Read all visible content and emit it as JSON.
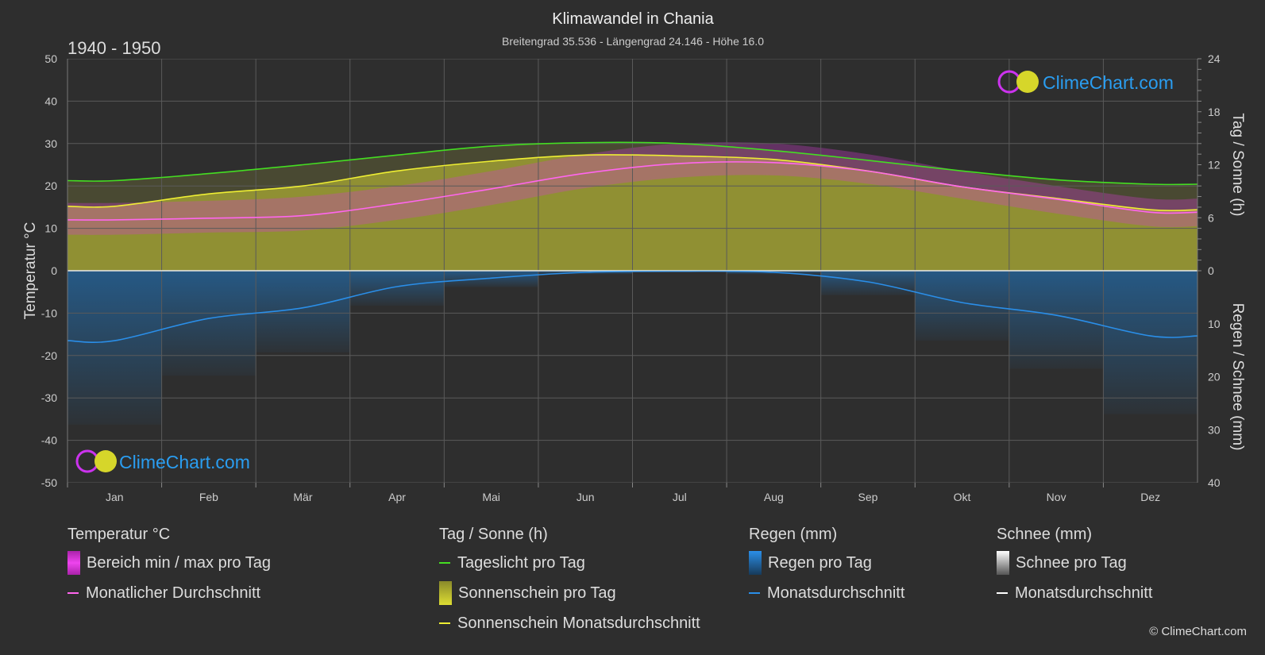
{
  "header": {
    "title": "Klimawandel in Chania",
    "subtitle": "Breitengrad 35.536 - Längengrad 24.146 - Höhe 16.0",
    "period": "1940 - 1950"
  },
  "logo_text": "ClimeChart.com",
  "copyright": "© ClimeChart.com",
  "colors": {
    "background": "#2e2e2e",
    "daylight": "#44dd22",
    "sunshine_fill": "#9c9c34",
    "sunshine_line": "#eeee33",
    "temp_range": "#d43ad4",
    "temp_avg": "#ff66ee",
    "rain": "#1f7ccc",
    "rain_avg": "#2a8ee8",
    "snow_avg": "#ffffff",
    "logo": "#2a9df0"
  },
  "chart_data": {
    "type": "area",
    "x": [
      "Jan",
      "Feb",
      "Mär",
      "Apr",
      "Mai",
      "Jun",
      "Jul",
      "Aug",
      "Sep",
      "Okt",
      "Nov",
      "Dez"
    ],
    "y_left": {
      "label": "Temperatur °C",
      "range": [
        -50,
        50
      ],
      "ticks": [
        "50",
        "40",
        "30",
        "20",
        "10",
        "0",
        "-10",
        "-20",
        "-30",
        "-40",
        "-50"
      ]
    },
    "y_right_top": {
      "label": "Tag / Sonne (h)",
      "range": [
        0,
        24
      ],
      "ticks": [
        "24",
        "18",
        "12",
        "6",
        "0"
      ]
    },
    "y_right_bottom": {
      "label": "Regen / Schnee (mm)",
      "range": [
        0,
        40
      ],
      "ticks": [
        "10",
        "20",
        "30",
        "40"
      ]
    },
    "grid": true,
    "series": [
      {
        "name": "Tageslicht pro Tag",
        "unit": "h",
        "values": [
          10.2,
          11.0,
          12.0,
          13.1,
          14.1,
          14.5,
          14.4,
          13.6,
          12.5,
          11.3,
          10.3,
          9.8
        ]
      },
      {
        "name": "Sonnenschein Monatsdurchschnitt",
        "unit": "h",
        "values": [
          7.3,
          8.7,
          9.6,
          11.3,
          12.4,
          13.1,
          13.0,
          12.6,
          11.3,
          9.5,
          8.2,
          6.9
        ]
      },
      {
        "name": "Monatlicher Durchschnitt",
        "unit": "°C",
        "values": [
          12.0,
          12.4,
          13.0,
          15.8,
          19.3,
          23.0,
          25.3,
          25.5,
          23.5,
          19.8,
          16.9,
          13.8
        ]
      },
      {
        "name": "Bereich min / max pro Tag",
        "unit": "°C",
        "min": [
          8.5,
          9.0,
          9.5,
          12.0,
          15.5,
          19.5,
          22.0,
          22.5,
          20.5,
          17.0,
          13.5,
          10.5
        ],
        "max": [
          16.0,
          16.5,
          17.5,
          20.0,
          23.5,
          27.5,
          30.0,
          30.0,
          27.5,
          23.5,
          20.0,
          17.0
        ]
      },
      {
        "name": "Monatsdurchschnitt Regen",
        "unit": "mm",
        "values": [
          13.2,
          9.0,
          7.0,
          3.0,
          1.4,
          0.3,
          0.1,
          0.3,
          2.1,
          6.0,
          8.4,
          12.3
        ]
      },
      {
        "name": "Monatsdurchschnitt Schnee",
        "unit": "mm",
        "values": [
          0,
          0,
          0,
          0,
          0,
          0,
          0,
          0,
          0,
          0,
          0,
          0
        ]
      }
    ]
  },
  "legend": {
    "temperature": {
      "heading": "Temperatur °C",
      "items": [
        "Bereich min / max pro Tag",
        "Monatlicher Durchschnitt"
      ]
    },
    "sun": {
      "heading": "Tag / Sonne (h)",
      "items": [
        "Tageslicht pro Tag",
        "Sonnenschein pro Tag",
        "Sonnenschein Monatsdurchschnitt"
      ]
    },
    "rain": {
      "heading": "Regen (mm)",
      "items": [
        "Regen pro Tag",
        "Monatsdurchschnitt"
      ]
    },
    "snow": {
      "heading": "Schnee (mm)",
      "items": [
        "Schnee pro Tag",
        "Monatsdurchschnitt"
      ]
    }
  }
}
